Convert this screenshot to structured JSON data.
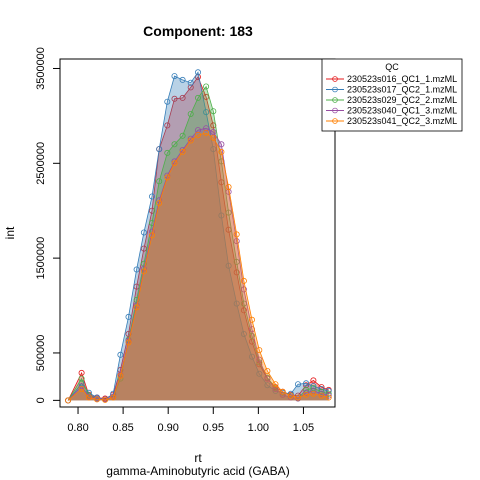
{
  "chart_data": {
    "type": "area",
    "title": "Component: 183",
    "xlabel": "rt",
    "subtitle": "gamma-Aminobutyric acid (GABA)",
    "ylabel": "int",
    "xlim": [
      0.78,
      1.085
    ],
    "ylim": [
      -70000,
      3600000
    ],
    "x_ticks": [
      0.8,
      0.85,
      0.9,
      0.95,
      1.0,
      1.05
    ],
    "x_tick_labels": [
      "0.80",
      "0.85",
      "0.90",
      "0.95",
      "1.00",
      "1.05"
    ],
    "y_ticks": [
      0,
      500000,
      1500000,
      2500000,
      3500000
    ],
    "y_tick_labels": [
      "0",
      "500000",
      "1500000",
      "2500000",
      "3500000"
    ],
    "grid": false,
    "legend_title": "QC",
    "legend_position": "top-right",
    "series": [
      {
        "name": "230523s016_QC1_1.mzML",
        "color": "#e41a1c",
        "fill": "rgba(228,26,28,0.35)",
        "x": [
          0.789,
          0.804,
          0.812,
          0.821,
          0.83,
          0.839,
          0.847,
          0.856,
          0.865,
          0.873,
          0.882,
          0.89,
          0.899,
          0.907,
          0.916,
          0.925,
          0.933,
          0.942,
          0.95,
          0.959,
          0.967,
          0.976,
          0.984,
          0.993,
          1.001,
          1.01,
          1.019,
          1.027,
          1.036,
          1.044,
          1.053,
          1.061,
          1.07,
          1.078
        ],
        "y": [
          0,
          290000,
          60000,
          30000,
          20000,
          60000,
          320000,
          700000,
          1200000,
          1600000,
          2000000,
          2650000,
          2900000,
          3180000,
          3190000,
          3300000,
          3410000,
          3200000,
          2900000,
          2300000,
          1800000,
          1350000,
          950000,
          620000,
          380000,
          230000,
          140000,
          90000,
          60000,
          50000,
          160000,
          210000,
          140000,
          110000
        ]
      },
      {
        "name": "230523s017_QC2_1.mzML",
        "color": "#377eb8",
        "fill": "rgba(55,126,184,0.35)",
        "x": [
          0.789,
          0.804,
          0.812,
          0.821,
          0.83,
          0.839,
          0.847,
          0.856,
          0.865,
          0.873,
          0.882,
          0.89,
          0.899,
          0.907,
          0.916,
          0.925,
          0.933,
          0.942,
          0.95,
          0.959,
          0.967,
          0.976,
          0.984,
          0.993,
          1.001,
          1.01,
          1.019,
          1.027,
          1.036,
          1.044,
          1.053,
          1.061,
          1.07,
          1.078
        ],
        "y": [
          0,
          180000,
          80000,
          30000,
          10000,
          70000,
          480000,
          880000,
          1380000,
          1770000,
          2150000,
          2650000,
          3150000,
          3420000,
          3380000,
          3350000,
          3460000,
          3040000,
          2650000,
          1950000,
          1420000,
          1020000,
          700000,
          460000,
          280000,
          160000,
          100000,
          80000,
          70000,
          170000,
          180000,
          150000,
          120000,
          100000
        ]
      },
      {
        "name": "230523s029_QC2_2.mzML",
        "color": "#4daf4a",
        "fill": "rgba(77,175,74,0.35)",
        "x": [
          0.789,
          0.804,
          0.812,
          0.821,
          0.83,
          0.839,
          0.847,
          0.856,
          0.865,
          0.873,
          0.882,
          0.89,
          0.899,
          0.907,
          0.916,
          0.925,
          0.933,
          0.942,
          0.95,
          0.959,
          0.967,
          0.976,
          0.984,
          0.993,
          1.001,
          1.01,
          1.019,
          1.027,
          1.036,
          1.044,
          1.053,
          1.061,
          1.07,
          1.078
        ],
        "y": [
          0,
          230000,
          50000,
          20000,
          10000,
          30000,
          230000,
          640000,
          1060000,
          1440000,
          1870000,
          2310000,
          2610000,
          2700000,
          2790000,
          3020000,
          3190000,
          3310000,
          3050000,
          2520000,
          1980000,
          1460000,
          1020000,
          680000,
          400000,
          240000,
          130000,
          60000,
          30000,
          20000,
          110000,
          130000,
          90000,
          70000
        ]
      },
      {
        "name": "230523s040_QC1_3.mzML",
        "color": "#984ea3",
        "fill": "rgba(152,78,163,0.35)",
        "x": [
          0.789,
          0.804,
          0.812,
          0.821,
          0.83,
          0.839,
          0.847,
          0.856,
          0.865,
          0.873,
          0.882,
          0.89,
          0.899,
          0.907,
          0.916,
          0.925,
          0.933,
          0.942,
          0.95,
          0.959,
          0.967,
          0.976,
          0.984,
          0.993,
          1.001,
          1.01,
          1.019,
          1.027,
          1.036,
          1.044,
          1.053,
          1.061,
          1.07,
          1.078
        ],
        "y": [
          0,
          150000,
          40000,
          20000,
          10000,
          40000,
          270000,
          630000,
          1000000,
          1390000,
          1780000,
          2110000,
          2370000,
          2520000,
          2640000,
          2760000,
          2850000,
          2870000,
          2830000,
          2700000,
          2200000,
          1680000,
          1170000,
          750000,
          430000,
          230000,
          120000,
          60000,
          30000,
          20000,
          80000,
          100000,
          70000,
          50000
        ]
      },
      {
        "name": "230523s041_QC2_3.mzML",
        "color": "#ff7f00",
        "fill": "rgba(255,127,0,0.35)",
        "x": [
          0.789,
          0.804,
          0.812,
          0.821,
          0.83,
          0.839,
          0.847,
          0.856,
          0.865,
          0.873,
          0.882,
          0.89,
          0.899,
          0.907,
          0.916,
          0.925,
          0.933,
          0.942,
          0.95,
          0.959,
          0.967,
          0.976,
          0.984,
          0.993,
          1.001,
          1.01,
          1.019,
          1.027,
          1.036,
          1.044,
          1.053,
          1.061,
          1.07,
          1.078
        ],
        "y": [
          0,
          120000,
          30000,
          10000,
          5000,
          30000,
          260000,
          610000,
          980000,
          1360000,
          1740000,
          2080000,
          2350000,
          2500000,
          2620000,
          2740000,
          2800000,
          2820000,
          2770000,
          2620000,
          2250000,
          1750000,
          1260000,
          850000,
          530000,
          310000,
          170000,
          90000,
          50000,
          30000,
          60000,
          70000,
          50000,
          30000
        ]
      }
    ]
  }
}
